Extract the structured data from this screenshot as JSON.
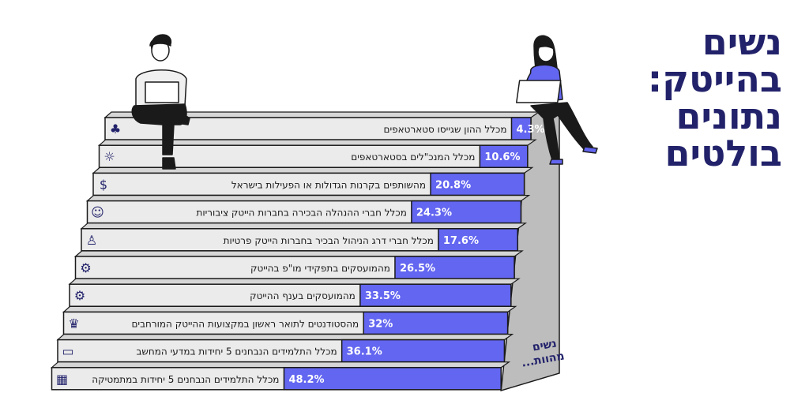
{
  "title_lines": [
    "נשים",
    "בהייטק:",
    "נתונים",
    "בולטים"
  ],
  "side_label_lines": [
    "נשים",
    "מהוות..."
  ],
  "colors": {
    "accent": "#6366f0",
    "navy": "#22226b",
    "step_light": "#ebebeb",
    "step_top": "#d6d6d6",
    "side_wall": "#bdbdbd",
    "outline": "#1a1a1a"
  },
  "chart_data": {
    "type": "bar",
    "orientation": "horizontal",
    "unit": "%",
    "ylim": [
      0,
      100
    ],
    "categories": [
      "מכלל ההון שגייסו סטארטאפים",
      "מכלל המנכ\"לים בסטארטאפים",
      "מהשותפים בקרנות הגדולות או הפעילות בישראל",
      "מכלל חברי ההנהלה הבכירה בחברות הייטק ציבוריות",
      "מכלל חברי דרג הניהול הבכיר בחברות הייטק פרטיות",
      "מהמועסקים בתפקידי מו\"פ בהייטק",
      "מהמועסקים בענף ההייטק",
      "מהסטודנטים לתואר ראשון במקצועות ההייטק המורחבים",
      "מכלל התלמידים הנבחנים 5 יחידות במדעי המחשב",
      "מכלל התלמידים הנבחנים 5 יחידות במתמטיקה"
    ],
    "values": [
      4.3,
      10.6,
      20.8,
      24.3,
      17.6,
      26.5,
      33.5,
      32,
      36.1,
      48.2
    ],
    "value_labels": [
      "4.3%",
      "10.6%",
      "20.8%",
      "24.3%",
      "17.6%",
      "26.5%",
      "33.5%",
      "32%",
      "36.1%",
      "48.2%"
    ],
    "icons": [
      "plant-pot-icon",
      "lightbulb-icon",
      "money-hand-icon",
      "user-circle-icon",
      "user-icon",
      "search-gear-icon",
      "gear-icon",
      "graduation-cap-icon",
      "computer-monitor-icon",
      "calculator-icon"
    ]
  }
}
